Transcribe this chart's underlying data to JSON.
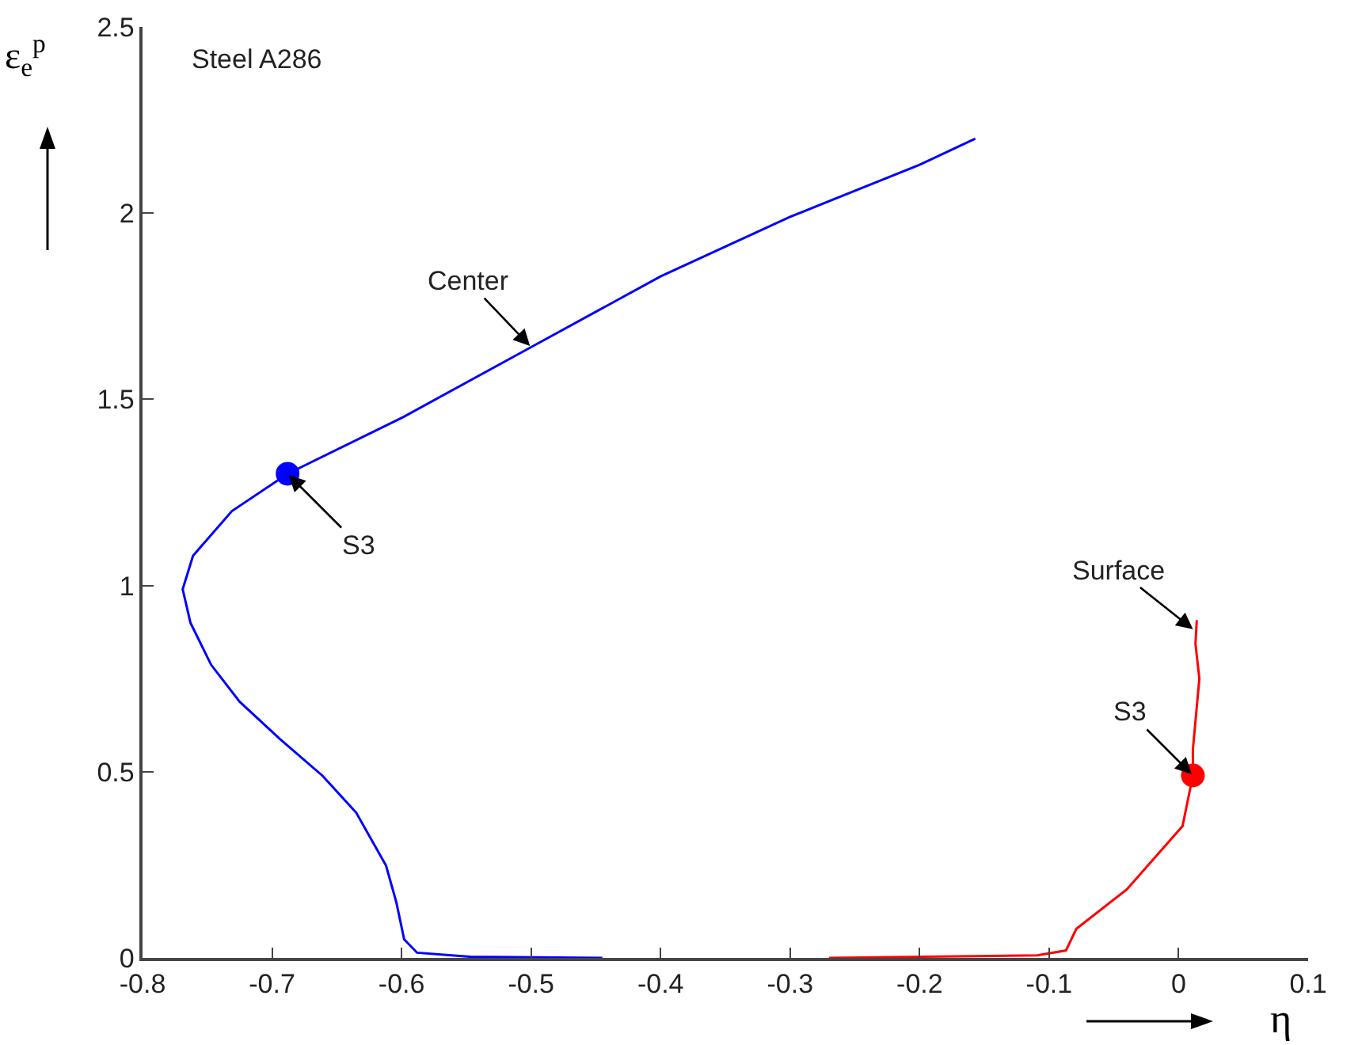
{
  "chart_data": {
    "type": "line",
    "title": "Steel A286",
    "xlabel": "η",
    "ylabel": "ε$_{e}$$^{p}$",
    "xlim": [
      -0.8,
      0.1
    ],
    "xticks": [
      -0.8,
      -0.7,
      -0.6,
      -0.5,
      -0.4,
      -0.3,
      -0.2,
      -0.1,
      0,
      0.1
    ],
    "ylim": [
      0,
      2.5
    ],
    "yticks": [
      0,
      0.5,
      1,
      1.5,
      2,
      2.5
    ],
    "grid": false,
    "legend": false,
    "marker": "none",
    "line_style": "solid",
    "series": [
      {
        "color": "#0000ff",
        "x": [
          -0.445,
          -0.547,
          -0.588,
          -0.598,
          -0.604,
          -0.612,
          -0.635,
          -0.661,
          -0.694,
          -0.725,
          -0.747,
          -0.763,
          -0.769,
          -0.761,
          -0.731,
          -0.688,
          -0.6,
          -0.5,
          -0.4,
          -0.3,
          -0.2,
          -0.157
        ],
        "values": [
          0,
          0.003,
          0.014,
          0.05,
          0.149,
          0.248,
          0.39,
          0.489,
          0.588,
          0.688,
          0.787,
          0.9,
          0.99,
          1.08,
          1.2,
          1.3,
          1.45,
          1.64,
          1.83,
          1.99,
          2.13,
          2.2
        ]
      },
      {
        "color": "#ff0000",
        "x": [
          -0.27,
          -0.109,
          -0.087,
          -0.079,
          -0.04,
          0.003,
          0.011,
          0.011,
          0.016,
          0.013,
          0.014
        ],
        "values": [
          0,
          0.007,
          0.02,
          0.078,
          0.184,
          0.354,
          0.49,
          0.56,
          0.75,
          0.843,
          0.907
        ]
      },
      {
        "type": "scatter",
        "marker": "circle",
        "color": "#0000ff",
        "x": [
          -0.688
        ],
        "values": [
          1.3
        ]
      },
      {
        "type": "scatter",
        "marker": "circle",
        "color": "#ff0000",
        "x": [
          0.011
        ],
        "values": [
          0.49
        ]
      }
    ],
    "annotations": [
      {
        "text": "Center",
        "x": -0.5,
        "y": 1.64
      },
      {
        "text": "S3",
        "x": -0.688,
        "y": 1.3
      },
      {
        "text": "Surface",
        "x": 0.012,
        "y": 0.88
      },
      {
        "text": "S3",
        "x": 0.011,
        "y": 0.49
      }
    ]
  }
}
